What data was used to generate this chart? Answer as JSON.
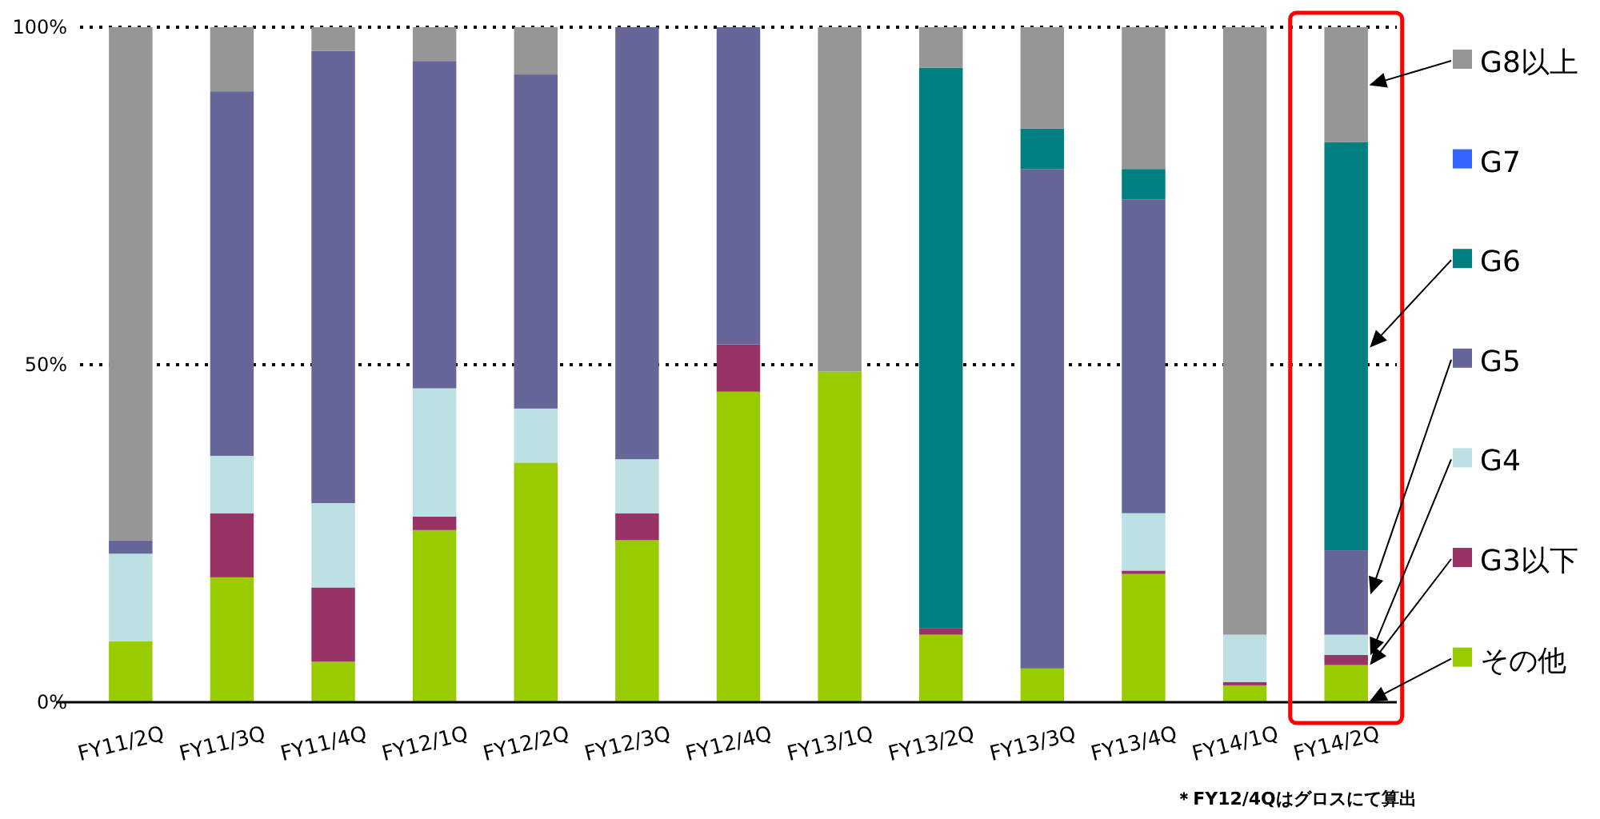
{
  "chart_data": {
    "type": "bar",
    "stacked": true,
    "categories": [
      "FY11/2Q",
      "FY11/3Q",
      "FY11/4Q",
      "FY12/1Q",
      "FY12/2Q",
      "FY12/3Q",
      "FY12/4Q",
      "FY13/1Q",
      "FY13/2Q",
      "FY13/3Q",
      "FY13/4Q",
      "FY14/1Q",
      "FY14/2Q"
    ],
    "series": [
      {
        "name": "その他",
        "color": "#99cc00",
        "values": [
          9,
          18.5,
          6,
          25.5,
          35.5,
          24,
          46,
          49,
          10,
          5,
          19,
          2.5,
          5.5
        ]
      },
      {
        "name": "G3以下",
        "color": "#993366",
        "values": [
          0,
          9.5,
          11,
          2,
          0,
          4,
          7,
          0,
          1,
          0,
          0.5,
          0.5,
          1.5
        ]
      },
      {
        "name": "G4",
        "color": "#bde0e3",
        "values": [
          13,
          8.5,
          12.5,
          19,
          8,
          8,
          0,
          0,
          0,
          0,
          8.5,
          7,
          3
        ]
      },
      {
        "name": "G5",
        "color": "#666699",
        "values": [
          2,
          54,
          67,
          48.5,
          49.5,
          64,
          47,
          0,
          0,
          74,
          46.5,
          0,
          12.5
        ]
      },
      {
        "name": "G6",
        "color": "#008080",
        "values": [
          0,
          0,
          0,
          0,
          0,
          0,
          0,
          0,
          83,
          6,
          4.5,
          0,
          60.5
        ]
      },
      {
        "name": "G7",
        "color": "#3366ff",
        "values": [
          0,
          0,
          0,
          0,
          0,
          0,
          0,
          0,
          0,
          0,
          0,
          0,
          0
        ]
      },
      {
        "name": "G8以上",
        "color": "#969696",
        "values": [
          76,
          9.5,
          3.5,
          5,
          7,
          0,
          0,
          51,
          6,
          15,
          21,
          90,
          17
        ]
      }
    ],
    "ylim": [
      0,
      100
    ],
    "yticks": [
      {
        "value": 0,
        "label": "0%"
      },
      {
        "value": 50,
        "label": "50%"
      },
      {
        "value": 100,
        "label": "100%"
      }
    ],
    "grid": "y",
    "legend": "right",
    "annotations": [
      "＊FY12/4Qはグロスにて算出"
    ]
  }
}
